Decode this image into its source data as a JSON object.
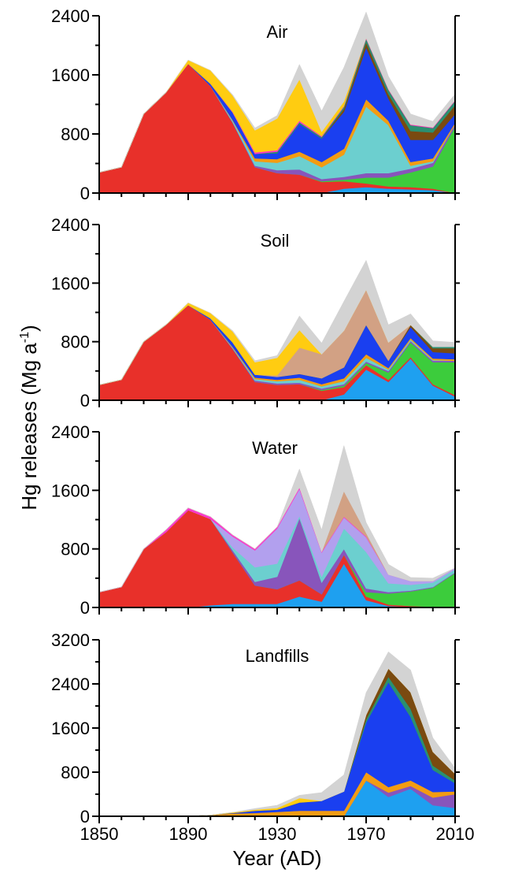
{
  "figure": {
    "ylabel": "Hg releases (Mg a",
    "ylabel_sup": "-1",
    "ylabel_close": ")",
    "xlabel": "Year (AD)",
    "x_tick_labels": [
      "1850",
      "1890",
      "1930",
      "1970",
      "2010"
    ]
  },
  "chart_data": [
    {
      "type": "area",
      "title": "Air",
      "x": [
        1850,
        1860,
        1870,
        1880,
        1890,
        1900,
        1910,
        1920,
        1930,
        1940,
        1950,
        1960,
        1970,
        1980,
        1990,
        2000,
        2010
      ],
      "ylim": [
        0,
        2400
      ],
      "yticks": [
        0,
        800,
        1600,
        2400
      ],
      "grid": false,
      "series": [
        {
          "color": "#1ea0f0",
          "values": [
            0,
            0,
            0,
            0,
            0,
            0,
            0,
            0,
            0,
            0,
            0,
            60,
            80,
            60,
            50,
            40,
            0
          ]
        },
        {
          "color": "#e8302a",
          "values": [
            280,
            350,
            1070,
            1360,
            1750,
            1450,
            950,
            350,
            270,
            250,
            150,
            100,
            50,
            30,
            30,
            20,
            0
          ]
        },
        {
          "color": "#3ccc3c",
          "values": [
            0,
            0,
            0,
            0,
            0,
            0,
            0,
            0,
            0,
            0,
            10,
            20,
            80,
            120,
            200,
            300,
            900
          ]
        },
        {
          "color": "#8855bb",
          "values": [
            0,
            0,
            0,
            0,
            0,
            0,
            10,
            20,
            40,
            70,
            30,
            40,
            60,
            60,
            50,
            50,
            30
          ]
        },
        {
          "color": "#6ccfcf",
          "values": [
            0,
            0,
            0,
            0,
            0,
            0,
            20,
            60,
            100,
            180,
            160,
            300,
            900,
            650,
            40,
            20,
            0
          ]
        },
        {
          "color": "#f39c12",
          "values": [
            0,
            0,
            0,
            0,
            0,
            0,
            10,
            40,
            50,
            60,
            70,
            80,
            100,
            60,
            50,
            40,
            20
          ]
        },
        {
          "color": "#1a3ff0",
          "values": [
            0,
            0,
            0,
            0,
            0,
            30,
            100,
            60,
            80,
            380,
            320,
            500,
            700,
            300,
            300,
            250,
            120
          ]
        },
        {
          "color": "#7a4a10",
          "values": [
            0,
            0,
            0,
            0,
            0,
            0,
            0,
            0,
            0,
            0,
            0,
            40,
            70,
            60,
            120,
            100,
            120
          ]
        },
        {
          "color": "#2a9070",
          "values": [
            0,
            0,
            0,
            0,
            0,
            0,
            0,
            0,
            20,
            20,
            20,
            30,
            50,
            60,
            80,
            60,
            60
          ]
        },
        {
          "color": "#ff33cc",
          "values": [
            0,
            0,
            0,
            0,
            0,
            0,
            10,
            20,
            20,
            20,
            10,
            10,
            10,
            10,
            10,
            10,
            10
          ]
        },
        {
          "color": "#ffcc11",
          "values": [
            0,
            0,
            0,
            0,
            50,
            180,
            220,
            300,
            430,
            560,
            60,
            60,
            0,
            0,
            0,
            0,
            0
          ]
        },
        {
          "color": "#d3d3d3",
          "values": [
            0,
            0,
            0,
            0,
            0,
            0,
            10,
            30,
            40,
            200,
            280,
            460,
            350,
            170,
            140,
            80,
            80
          ]
        }
      ]
    },
    {
      "type": "area",
      "title": "Soil",
      "x": [
        1850,
        1860,
        1870,
        1880,
        1890,
        1900,
        1910,
        1920,
        1930,
        1940,
        1950,
        1960,
        1970,
        1980,
        1990,
        2000,
        2010
      ],
      "ylim": [
        0,
        2400
      ],
      "yticks": [
        0,
        800,
        1600,
        2400
      ],
      "grid": false,
      "series": [
        {
          "color": "#1ea0f0",
          "values": [
            0,
            0,
            0,
            0,
            0,
            0,
            0,
            0,
            0,
            0,
            0,
            80,
            420,
            250,
            570,
            200,
            50
          ]
        },
        {
          "color": "#e8302a",
          "values": [
            210,
            280,
            800,
            1030,
            1300,
            1100,
            700,
            250,
            210,
            220,
            130,
            100,
            60,
            30,
            20,
            20,
            20
          ]
        },
        {
          "color": "#3ccc3c",
          "values": [
            0,
            0,
            0,
            0,
            0,
            0,
            0,
            0,
            0,
            0,
            10,
            20,
            30,
            100,
            200,
            300,
            450
          ]
        },
        {
          "color": "#8855bb",
          "values": [
            0,
            0,
            0,
            0,
            0,
            0,
            10,
            20,
            20,
            20,
            20,
            20,
            20,
            20,
            20,
            20,
            20
          ]
        },
        {
          "color": "#6ccfcf",
          "values": [
            0,
            0,
            0,
            0,
            0,
            0,
            10,
            20,
            30,
            40,
            30,
            40,
            50,
            20,
            20,
            10,
            0
          ]
        },
        {
          "color": "#f39c12",
          "values": [
            0,
            0,
            0,
            0,
            0,
            0,
            10,
            20,
            20,
            30,
            30,
            40,
            50,
            20,
            20,
            20,
            20
          ]
        },
        {
          "color": "#1a3ff0",
          "values": [
            0,
            0,
            0,
            0,
            0,
            20,
            60,
            40,
            40,
            50,
            80,
            150,
            400,
            100,
            150,
            90,
            80
          ]
        },
        {
          "color": "#7a4a10",
          "values": [
            0,
            0,
            0,
            0,
            0,
            0,
            0,
            0,
            0,
            0,
            0,
            0,
            0,
            0,
            30,
            50,
            70
          ]
        },
        {
          "color": "#2a9070",
          "values": [
            0,
            0,
            0,
            0,
            0,
            0,
            0,
            0,
            0,
            0,
            0,
            0,
            0,
            0,
            0,
            20,
            20
          ]
        },
        {
          "color": "#d2a184",
          "values": [
            0,
            0,
            0,
            0,
            0,
            0,
            0,
            0,
            20,
            360,
            330,
            500,
            480,
            250,
            0,
            0,
            0
          ]
        },
        {
          "color": "#ffcc11",
          "values": [
            0,
            0,
            0,
            0,
            30,
            70,
            150,
            170,
            240,
            240,
            0,
            0,
            0,
            0,
            0,
            0,
            0
          ]
        },
        {
          "color": "#d3d3d3",
          "values": [
            0,
            0,
            0,
            0,
            0,
            0,
            10,
            20,
            30,
            190,
            150,
            400,
            400,
            240,
            150,
            80,
            60
          ]
        }
      ]
    },
    {
      "type": "area",
      "title": "Water",
      "x": [
        1850,
        1860,
        1870,
        1880,
        1890,
        1900,
        1910,
        1920,
        1930,
        1940,
        1950,
        1960,
        1970,
        1980,
        1990,
        2000,
        2010
      ],
      "ylim": [
        0,
        2400
      ],
      "yticks": [
        0,
        800,
        1600,
        2400
      ],
      "grid": false,
      "series": [
        {
          "color": "#1ea0f0",
          "values": [
            0,
            0,
            0,
            0,
            0,
            30,
            50,
            50,
            50,
            150,
            80,
            600,
            100,
            20,
            10,
            0,
            0
          ]
        },
        {
          "color": "#e8302a",
          "values": [
            210,
            280,
            800,
            1030,
            1330,
            1180,
            700,
            250,
            200,
            220,
            100,
            120,
            50,
            20,
            10,
            10,
            0
          ]
        },
        {
          "color": "#3ccc3c",
          "values": [
            0,
            0,
            0,
            0,
            0,
            0,
            0,
            0,
            0,
            0,
            0,
            0,
            60,
            150,
            200,
            260,
            470
          ]
        },
        {
          "color": "#8855bb",
          "values": [
            0,
            0,
            0,
            0,
            0,
            0,
            30,
            50,
            170,
            850,
            160,
            80,
            50,
            20,
            10,
            10,
            10
          ]
        },
        {
          "color": "#6ccfcf",
          "values": [
            0,
            0,
            0,
            0,
            0,
            0,
            40,
            200,
            180,
            30,
            80,
            280,
            500,
            120,
            80,
            60,
            40
          ]
        },
        {
          "color": "#b2a0ee",
          "values": [
            0,
            0,
            0,
            0,
            0,
            0,
            150,
            230,
            480,
            370,
            330,
            150,
            200,
            120,
            50,
            20,
            20
          ]
        },
        {
          "color": "#ff33cc",
          "values": [
            0,
            0,
            0,
            30,
            30,
            30,
            20,
            20,
            20,
            20,
            10,
            10,
            10,
            0,
            0,
            0,
            0
          ]
        },
        {
          "color": "#d2a184",
          "values": [
            0,
            0,
            0,
            0,
            0,
            0,
            0,
            0,
            0,
            0,
            0,
            350,
            50,
            0,
            0,
            0,
            0
          ]
        },
        {
          "color": "#d3d3d3",
          "values": [
            0,
            0,
            0,
            0,
            0,
            0,
            0,
            0,
            0,
            250,
            300,
            620,
            140,
            140,
            50,
            40,
            0
          ]
        }
      ]
    },
    {
      "type": "area",
      "title": "Landfills",
      "x": [
        1850,
        1860,
        1870,
        1880,
        1890,
        1900,
        1910,
        1920,
        1930,
        1940,
        1950,
        1960,
        1970,
        1980,
        1990,
        2000,
        2010
      ],
      "ylim": [
        0,
        3200
      ],
      "yticks": [
        0,
        800,
        1600,
        2400,
        3200
      ],
      "grid": false,
      "series": [
        {
          "color": "#1ea0f0",
          "values": [
            0,
            0,
            0,
            0,
            0,
            0,
            0,
            0,
            0,
            0,
            0,
            0,
            650,
            350,
            500,
            200,
            150
          ]
        },
        {
          "color": "#8855bb",
          "values": [
            0,
            0,
            0,
            0,
            0,
            0,
            0,
            0,
            0,
            0,
            0,
            0,
            0,
            80,
            50,
            140,
            250
          ]
        },
        {
          "color": "#f39c12",
          "values": [
            0,
            0,
            0,
            0,
            0,
            20,
            50,
            60,
            80,
            100,
            100,
            100,
            150,
            100,
            100,
            100,
            50
          ]
        },
        {
          "color": "#1a3ff0",
          "values": [
            0,
            0,
            0,
            0,
            0,
            0,
            10,
            40,
            40,
            150,
            180,
            350,
            900,
            1900,
            1150,
            400,
            150
          ]
        },
        {
          "color": "#2a9070",
          "values": [
            0,
            0,
            0,
            0,
            0,
            0,
            0,
            0,
            0,
            0,
            0,
            0,
            60,
            100,
            150,
            80,
            50
          ]
        },
        {
          "color": "#7a4a10",
          "values": [
            0,
            0,
            0,
            0,
            0,
            0,
            0,
            0,
            0,
            0,
            0,
            0,
            80,
            150,
            300,
            250,
            120
          ]
        },
        {
          "color": "#ffcc11",
          "values": [
            0,
            0,
            0,
            0,
            0,
            0,
            10,
            20,
            30,
            80,
            0,
            0,
            0,
            0,
            0,
            0,
            0
          ]
        },
        {
          "color": "#d3d3d3",
          "values": [
            0,
            0,
            0,
            0,
            0,
            0,
            0,
            20,
            50,
            50,
            150,
            300,
            400,
            300,
            400,
            250,
            100
          ]
        }
      ]
    }
  ]
}
